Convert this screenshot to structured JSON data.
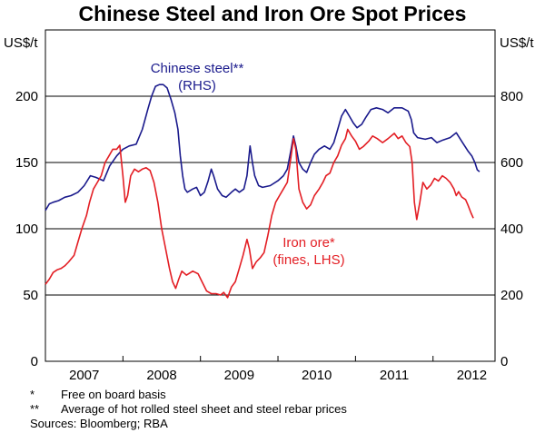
{
  "title": "Chinese Steel and Iron Ore Spot Prices",
  "notes": [
    {
      "mark": "*",
      "text": "Free on board basis"
    },
    {
      "mark": "**",
      "text": "Average of hot rolled steel sheet and steel rebar prices"
    }
  ],
  "sources": "Sources: Bloomberg; RBA",
  "chart_data": {
    "type": "line",
    "title": "Chinese Steel and Iron Ore Spot Prices",
    "left_axis": {
      "unit_label": "US$/t",
      "ylim": [
        0,
        250
      ],
      "ticks": [
        0,
        50,
        100,
        150,
        200
      ]
    },
    "right_axis": {
      "unit_label": "US$/t",
      "ylim": [
        0,
        1000
      ],
      "ticks": [
        0,
        200,
        400,
        600,
        800
      ]
    },
    "x_range": [
      2006.5,
      2012.3
    ],
    "x_tick_labels": [
      "2007",
      "2008",
      "2009",
      "2010",
      "2011",
      "2012"
    ],
    "x_tick_label_positions": [
      2007.0,
      2008.0,
      2009.0,
      2010.0,
      2011.0,
      2012.0
    ],
    "x_year_boundaries": [
      2007.5,
      2008.5,
      2009.5,
      2010.5,
      2011.5
    ],
    "colors": {
      "steel": "#1a1a8c",
      "iron": "#e31e24"
    },
    "series": [
      {
        "name": "Chinese steel",
        "label_line1": "Chinese steel**",
        "label_line2": "(RHS)",
        "axis": "right",
        "color": "#1a1a8c",
        "points": [
          [
            2006.5,
            455
          ],
          [
            2006.55,
            475
          ],
          [
            2006.6,
            480
          ],
          [
            2006.67,
            485
          ],
          [
            2006.75,
            495
          ],
          [
            2006.83,
            500
          ],
          [
            2006.92,
            510
          ],
          [
            2007.0,
            530
          ],
          [
            2007.08,
            560
          ],
          [
            2007.15,
            555
          ],
          [
            2007.25,
            545
          ],
          [
            2007.33,
            590
          ],
          [
            2007.42,
            620
          ],
          [
            2007.5,
            640
          ],
          [
            2007.58,
            650
          ],
          [
            2007.67,
            655
          ],
          [
            2007.75,
            700
          ],
          [
            2007.82,
            760
          ],
          [
            2007.87,
            800
          ],
          [
            2007.92,
            830
          ],
          [
            2007.97,
            835
          ],
          [
            2008.02,
            835
          ],
          [
            2008.07,
            825
          ],
          [
            2008.12,
            790
          ],
          [
            2008.17,
            750
          ],
          [
            2008.21,
            700
          ],
          [
            2008.24,
            620
          ],
          [
            2008.27,
            560
          ],
          [
            2008.3,
            520
          ],
          [
            2008.33,
            510
          ],
          [
            2008.4,
            520
          ],
          [
            2008.45,
            525
          ],
          [
            2008.5,
            500
          ],
          [
            2008.55,
            510
          ],
          [
            2008.6,
            545
          ],
          [
            2008.64,
            580
          ],
          [
            2008.67,
            560
          ],
          [
            2008.72,
            520
          ],
          [
            2008.78,
            500
          ],
          [
            2008.83,
            495
          ],
          [
            2008.9,
            510
          ],
          [
            2008.95,
            520
          ],
          [
            2009.0,
            510
          ],
          [
            2009.06,
            520
          ],
          [
            2009.1,
            560
          ],
          [
            2009.14,
            650
          ],
          [
            2009.17,
            600
          ],
          [
            2009.2,
            560
          ],
          [
            2009.25,
            530
          ],
          [
            2009.3,
            525
          ],
          [
            2009.4,
            530
          ],
          [
            2009.5,
            545
          ],
          [
            2009.57,
            560
          ],
          [
            2009.62,
            580
          ],
          [
            2009.67,
            640
          ],
          [
            2009.7,
            680
          ],
          [
            2009.73,
            650
          ],
          [
            2009.77,
            600
          ],
          [
            2009.82,
            580
          ],
          [
            2009.87,
            570
          ],
          [
            2009.92,
            600
          ],
          [
            2009.97,
            625
          ],
          [
            2010.03,
            640
          ],
          [
            2010.1,
            650
          ],
          [
            2010.17,
            640
          ],
          [
            2010.22,
            660
          ],
          [
            2010.27,
            700
          ],
          [
            2010.32,
            740
          ],
          [
            2010.37,
            760
          ],
          [
            2010.42,
            740
          ],
          [
            2010.47,
            720
          ],
          [
            2010.52,
            705
          ],
          [
            2010.58,
            715
          ],
          [
            2010.63,
            735
          ],
          [
            2010.7,
            760
          ],
          [
            2010.77,
            765
          ],
          [
            2010.85,
            760
          ],
          [
            2010.92,
            750
          ],
          [
            2011.0,
            765
          ],
          [
            2011.1,
            765
          ],
          [
            2011.18,
            755
          ],
          [
            2011.22,
            730
          ],
          [
            2011.25,
            690
          ],
          [
            2011.3,
            675
          ],
          [
            2011.4,
            670
          ],
          [
            2011.48,
            675
          ],
          [
            2011.55,
            660
          ],
          [
            2011.63,
            668
          ],
          [
            2011.72,
            675
          ],
          [
            2011.8,
            690
          ],
          [
            2011.88,
            660
          ],
          [
            2011.95,
            635
          ],
          [
            2012.0,
            620
          ],
          [
            2012.04,
            600
          ],
          [
            2012.07,
            578
          ],
          [
            2012.1,
            572
          ]
        ]
      },
      {
        "name": "Iron ore",
        "label_line1": "Iron ore*",
        "label_line2": "(fines, LHS)",
        "axis": "left",
        "color": "#e31e24",
        "points": [
          [
            2006.5,
            58
          ],
          [
            2006.55,
            62
          ],
          [
            2006.6,
            67
          ],
          [
            2006.65,
            69
          ],
          [
            2006.7,
            70
          ],
          [
            2006.75,
            72
          ],
          [
            2006.8,
            75
          ],
          [
            2006.87,
            80
          ],
          [
            2006.92,
            90
          ],
          [
            2006.97,
            100
          ],
          [
            2007.03,
            110
          ],
          [
            2007.07,
            120
          ],
          [
            2007.12,
            130
          ],
          [
            2007.17,
            135
          ],
          [
            2007.22,
            140
          ],
          [
            2007.27,
            150
          ],
          [
            2007.32,
            155
          ],
          [
            2007.37,
            160
          ],
          [
            2007.42,
            160
          ],
          [
            2007.46,
            163
          ],
          [
            2007.5,
            140
          ],
          [
            2007.53,
            120
          ],
          [
            2007.56,
            125
          ],
          [
            2007.6,
            140
          ],
          [
            2007.65,
            145
          ],
          [
            2007.7,
            143
          ],
          [
            2007.75,
            145
          ],
          [
            2007.8,
            146
          ],
          [
            2007.85,
            144
          ],
          [
            2007.9,
            135
          ],
          [
            2007.95,
            120
          ],
          [
            2008.0,
            100
          ],
          [
            2008.05,
            85
          ],
          [
            2008.1,
            70
          ],
          [
            2008.14,
            60
          ],
          [
            2008.18,
            55
          ],
          [
            2008.22,
            62
          ],
          [
            2008.26,
            68
          ],
          [
            2008.32,
            65
          ],
          [
            2008.4,
            68
          ],
          [
            2008.47,
            66
          ],
          [
            2008.52,
            60
          ],
          [
            2008.58,
            53
          ],
          [
            2008.64,
            51
          ],
          [
            2008.7,
            51
          ],
          [
            2008.76,
            50
          ],
          [
            2008.8,
            52
          ],
          [
            2008.85,
            48
          ],
          [
            2008.9,
            56
          ],
          [
            2008.95,
            60
          ],
          [
            2009.0,
            70
          ],
          [
            2009.05,
            80
          ],
          [
            2009.1,
            92
          ],
          [
            2009.13,
            85
          ],
          [
            2009.17,
            70
          ],
          [
            2009.22,
            75
          ],
          [
            2009.27,
            78
          ],
          [
            2009.32,
            82
          ],
          [
            2009.37,
            95
          ],
          [
            2009.42,
            110
          ],
          [
            2009.47,
            120
          ],
          [
            2009.52,
            125
          ],
          [
            2009.57,
            130
          ],
          [
            2009.62,
            135
          ],
          [
            2009.67,
            155
          ],
          [
            2009.7,
            168
          ],
          [
            2009.73,
            160
          ],
          [
            2009.77,
            130
          ],
          [
            2009.82,
            120
          ],
          [
            2009.87,
            115
          ],
          [
            2009.92,
            118
          ],
          [
            2009.97,
            125
          ],
          [
            2010.03,
            130
          ],
          [
            2010.08,
            135
          ],
          [
            2010.12,
            140
          ],
          [
            2010.17,
            142
          ],
          [
            2010.22,
            150
          ],
          [
            2010.27,
            155
          ],
          [
            2010.32,
            163
          ],
          [
            2010.37,
            168
          ],
          [
            2010.4,
            175
          ],
          [
            2010.45,
            170
          ],
          [
            2010.5,
            166
          ],
          [
            2010.55,
            160
          ],
          [
            2010.6,
            162
          ],
          [
            2010.67,
            166
          ],
          [
            2010.72,
            170
          ],
          [
            2010.78,
            168
          ],
          [
            2010.85,
            165
          ],
          [
            2010.92,
            168
          ],
          [
            2011.0,
            172
          ],
          [
            2011.05,
            168
          ],
          [
            2011.1,
            170
          ],
          [
            2011.15,
            165
          ],
          [
            2011.2,
            162
          ],
          [
            2011.23,
            150
          ],
          [
            2011.26,
            120
          ],
          [
            2011.29,
            107
          ],
          [
            2011.33,
            120
          ],
          [
            2011.37,
            135
          ],
          [
            2011.42,
            130
          ],
          [
            2011.47,
            133
          ],
          [
            2011.52,
            138
          ],
          [
            2011.57,
            136
          ],
          [
            2011.62,
            140
          ],
          [
            2011.67,
            138
          ],
          [
            2011.72,
            135
          ],
          [
            2011.77,
            130
          ],
          [
            2011.8,
            125
          ],
          [
            2011.83,
            128
          ],
          [
            2011.87,
            124
          ],
          [
            2011.92,
            122
          ],
          [
            2011.95,
            118
          ],
          [
            2011.99,
            112
          ],
          [
            2012.02,
            108
          ]
        ]
      }
    ]
  }
}
